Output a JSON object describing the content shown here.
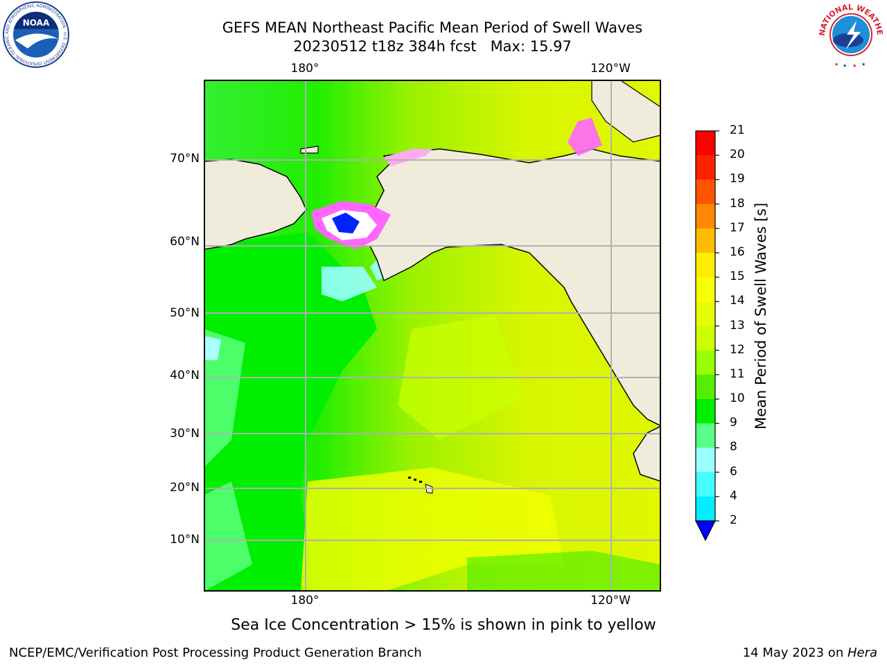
{
  "title": {
    "line1": "GEFS MEAN Northeast Pacific Mean Period of Swell Waves",
    "line2": "20230512 t18z 384h fcst   Max: 15.97"
  },
  "map": {
    "lon_labels_top": [
      "180°",
      "120°W"
    ],
    "lon_labels_bottom": [
      "180°",
      "120°W"
    ],
    "lat_labels": [
      "70°N",
      "60°N",
      "50°N",
      "40°N",
      "30°N",
      "20°N",
      "10°N"
    ],
    "ocean_colors": {
      "green": "#00ee00",
      "light_green": "#55ff77",
      "yellow_green": "#ccff00",
      "yellow": "#eeff00",
      "cyan": "#99ffff"
    },
    "land_color": "#efecdc",
    "ice_colors": [
      "#ff44ff",
      "#ffaaee",
      "#ffd060",
      "#ffffff",
      "#0022ff"
    ]
  },
  "colorbar": {
    "label": "Mean Period of Swell Waves [s]",
    "ticks": [
      "21",
      "20",
      "19",
      "18",
      "17",
      "16",
      "15",
      "14",
      "13",
      "12",
      "11",
      "10",
      "9",
      "8",
      "6",
      "4",
      "2"
    ],
    "colors_top_to_bottom": [
      "#ff0000",
      "#ff2200",
      "#ff5500",
      "#ff8800",
      "#ffbb00",
      "#ffee00",
      "#f7ff00",
      "#e6ff00",
      "#ccff00",
      "#99ff00",
      "#55ee00",
      "#00ee00",
      "#55ff88",
      "#99ffff",
      "#44ffff",
      "#00eeff",
      "#00bbff",
      "#0077ff"
    ],
    "under_color": "#0000ff"
  },
  "logos": {
    "noaa_text": "NOAA",
    "noaa_ring_text": "NATIONAL OCEANIC AND ATMOSPHERIC ADMINISTRATION · U.S. DEPARTMENT OF COMMERCE",
    "nws_ring_text": "NATIONAL WEATHER SERVICE"
  },
  "note": "Sea Ice Concentration > 15% is shown in pink to yellow",
  "footer": {
    "left": "NCEP/EMC/Verification Post Processing Product Generation Branch",
    "date": "14 May 2023 on ",
    "machine": "Hera"
  }
}
